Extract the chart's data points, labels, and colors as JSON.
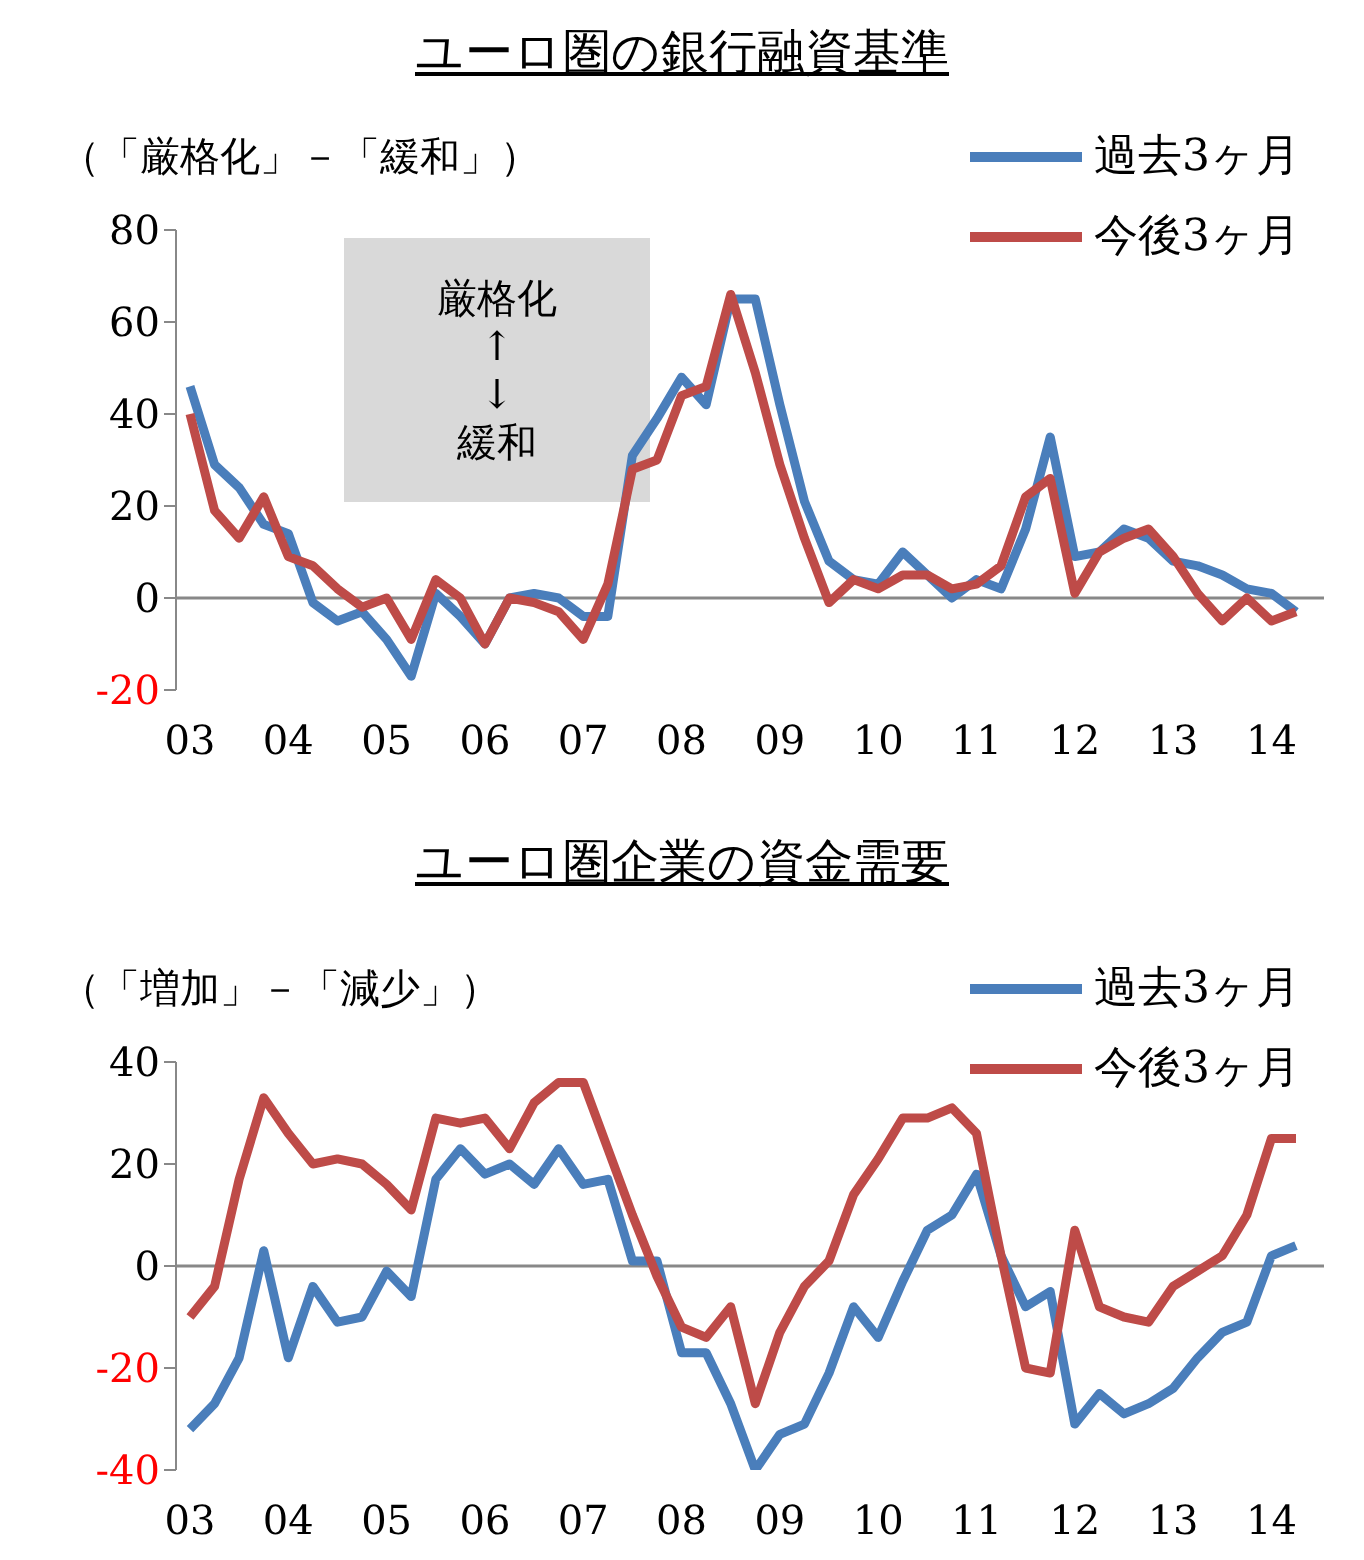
{
  "chart_data": [
    {
      "type": "line",
      "title": "ユーロ圏の銀行融資基準",
      "ylabel": "（「厳格化」－「緩和」）",
      "categories": [
        "03",
        null,
        null,
        null,
        "04",
        null,
        null,
        null,
        "05",
        null,
        null,
        null,
        "06",
        null,
        null,
        null,
        "07",
        null,
        null,
        null,
        "08",
        null,
        null,
        null,
        "09",
        null,
        null,
        null,
        "10",
        null,
        null,
        null,
        "11",
        null,
        null,
        null,
        "12",
        null,
        null,
        null,
        "13",
        null,
        null,
        null,
        "14",
        null
      ],
      "series": [
        {
          "name": "過去3ヶ月",
          "color": "#4a7ebb",
          "values": [
            46,
            29,
            24,
            16,
            14,
            -1,
            -5,
            -3,
            -9,
            -17,
            1,
            -4,
            -10,
            0,
            1,
            0,
            -4,
            -4,
            31,
            39,
            48,
            42,
            65,
            65,
            42,
            21,
            8,
            4,
            3,
            10,
            5,
            0,
            4,
            2,
            15,
            35,
            9,
            10,
            15,
            13,
            8,
            7,
            5,
            2,
            1,
            -3
          ]
        },
        {
          "name": "今後3ヶ月",
          "color": "#be4b48",
          "values": [
            40,
            19,
            13,
            22,
            9,
            7,
            2,
            -2,
            0,
            -9,
            4,
            0,
            -10,
            0,
            -1,
            -3,
            -9,
            3,
            28,
            30,
            44,
            46,
            66,
            49,
            29,
            13,
            -1,
            4,
            2,
            5,
            5,
            2,
            3,
            7,
            22,
            26,
            1,
            10,
            13,
            15,
            9,
            1,
            -5,
            0,
            -5,
            -3
          ]
        }
      ],
      "ylim": [
        -20,
        80
      ],
      "yticks": [
        -20,
        0,
        20,
        40,
        60,
        80
      ],
      "grid": false,
      "legend": "top right",
      "ref_lines": [
        {
          "axis": "y",
          "value": 0,
          "color": "#888888"
        }
      ],
      "annotations": [
        "厳格化\n↑\n↓\n緩和"
      ]
    },
    {
      "type": "line",
      "title": "ユーロ圏企業の資金需要",
      "ylabel": "（「増加」－「減少」）",
      "categories": [
        "03",
        null,
        null,
        null,
        "04",
        null,
        null,
        null,
        "05",
        null,
        null,
        null,
        "06",
        null,
        null,
        null,
        "07",
        null,
        null,
        null,
        "08",
        null,
        null,
        null,
        "09",
        null,
        null,
        null,
        "10",
        null,
        null,
        null,
        "11",
        null,
        null,
        null,
        "12",
        null,
        null,
        null,
        "13",
        null,
        null,
        null,
        "14",
        null
      ],
      "series": [
        {
          "name": "過去3ヶ月",
          "color": "#4a7ebb",
          "values": [
            -32,
            -27,
            -18,
            3,
            -18,
            -4,
            -11,
            -10,
            -1,
            -6,
            17,
            23,
            18,
            20,
            16,
            23,
            16,
            17,
            1,
            1,
            -17,
            -17,
            -27,
            -40,
            -33,
            -31,
            -21,
            -8,
            -14,
            -3,
            7,
            10,
            18,
            2,
            -8,
            -5,
            -31,
            -25,
            -29,
            -27,
            -24,
            -18,
            -13,
            -11,
            2,
            4
          ]
        },
        {
          "name": "今後3ヶ月",
          "color": "#be4b48",
          "values": [
            -10,
            -4,
            17,
            33,
            26,
            20,
            21,
            20,
            16,
            11,
            29,
            28,
            29,
            23,
            32,
            36,
            36,
            23,
            10,
            -2,
            -12,
            -14,
            -8,
            -27,
            -13,
            -4,
            1,
            14,
            21,
            29,
            29,
            31,
            26,
            2,
            -20,
            -21,
            7,
            -8,
            -10,
            -11,
            -4,
            -1,
            2,
            10,
            25,
            25
          ]
        }
      ],
      "ylim": [
        -40,
        40
      ],
      "yticks": [
        -40,
        -20,
        0,
        20,
        40
      ],
      "grid": false,
      "legend": "top right",
      "ref_lines": [
        {
          "axis": "y",
          "value": 0,
          "color": "#888888"
        }
      ]
    }
  ]
}
